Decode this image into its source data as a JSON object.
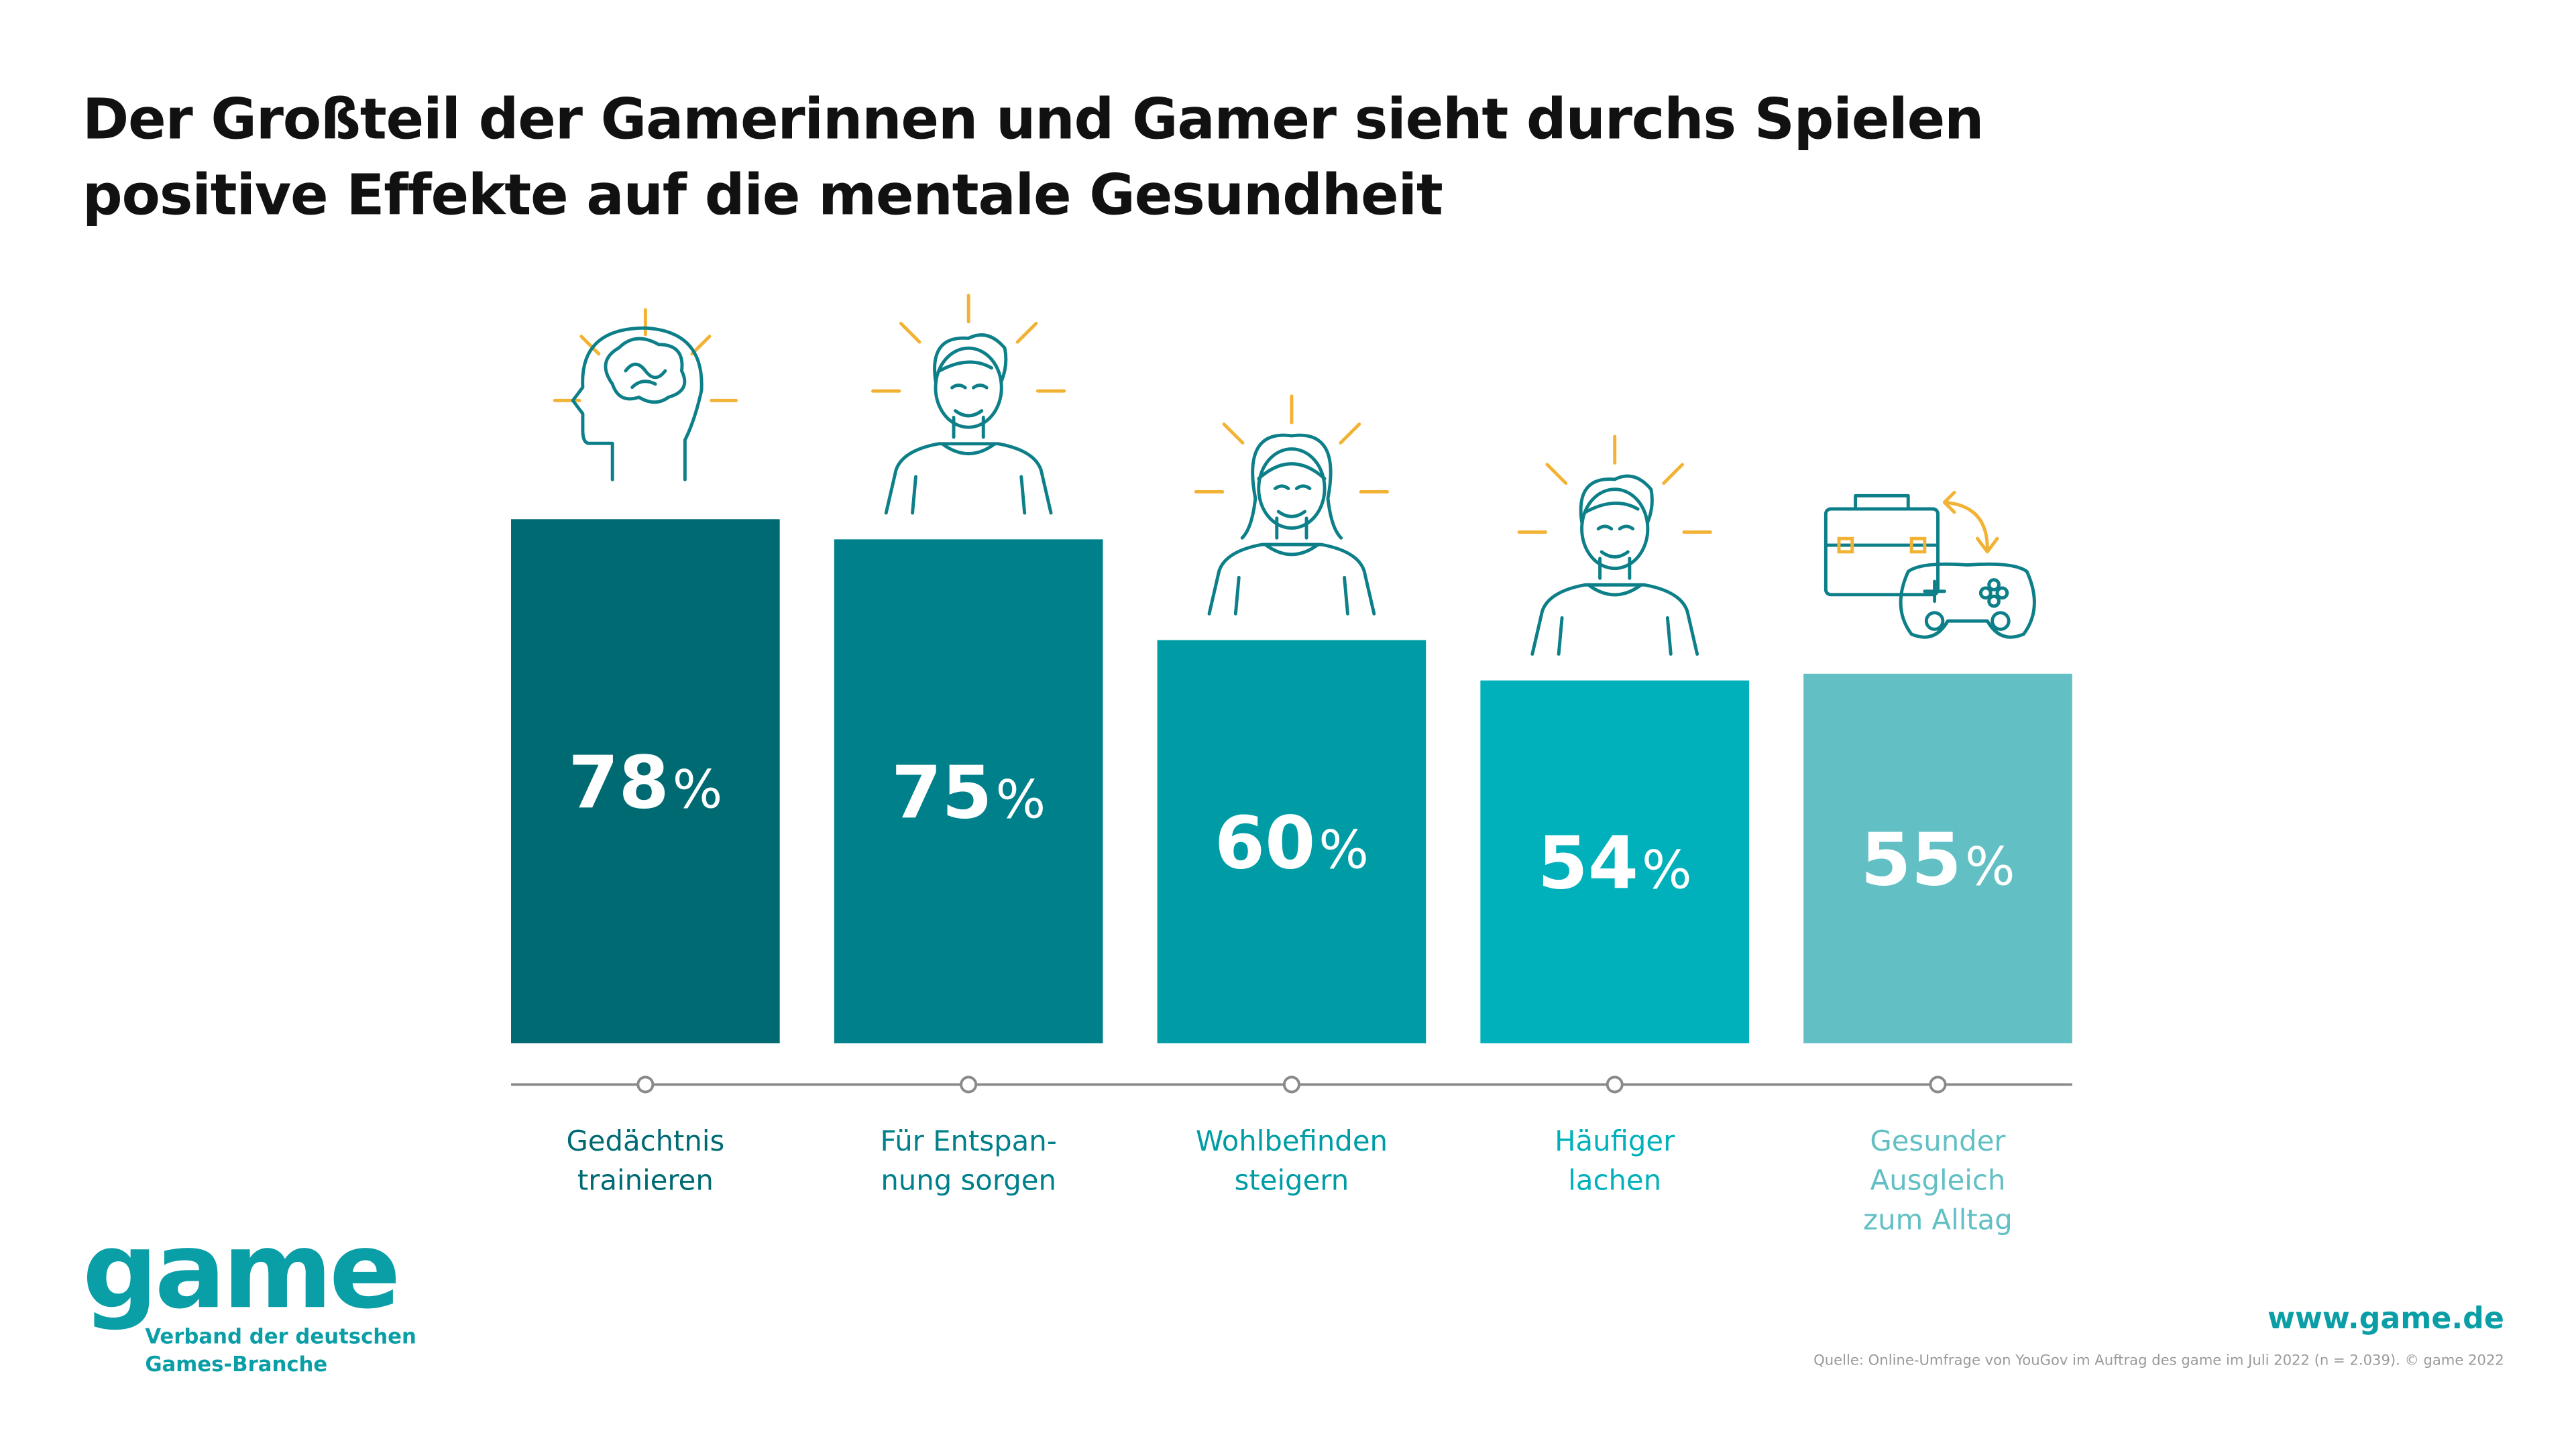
{
  "title_lines": [
    "Der Großteil der Gamerinnen und Gamer sieht durchs Spielen",
    "positive Effekte auf die mentale Gesundheit"
  ],
  "chart_data": {
    "type": "bar",
    "title": "Der Großteil der Gamerinnen und Gamer sieht durchs Spielen positive Effekte auf die mentale Gesundheit",
    "categories": [
      [
        "Gedächtnis",
        "trainieren"
      ],
      [
        "Für Entspan-",
        "nung sorgen"
      ],
      [
        "Wohlbefinden",
        "steigern"
      ],
      [
        "Häufiger",
        "lachen"
      ],
      [
        "Gesunder",
        "Ausgleich",
        "zum Alltag"
      ]
    ],
    "values": [
      78,
      75,
      60,
      54,
      55
    ],
    "value_labels": [
      "78",
      "75",
      "60",
      "54",
      "55"
    ],
    "unit": "%",
    "bar_colors": [
      "#006a73",
      "#00808a",
      "#009ca6",
      "#00b1bb",
      "#62c0c5"
    ],
    "label_colors": [
      "#006a73",
      "#00808a",
      "#009ca6",
      "#00b1bb",
      "#62c0c5"
    ],
    "icons": [
      "brain-head-icon",
      "relaxed-man-icon",
      "happy-woman-icon",
      "laughing-man-icon",
      "briefcase-gamepad-icon"
    ],
    "icon_line_color": "#0d7f88",
    "icon_ray_color": "#f2b233",
    "axis_color": "#8a8a8a",
    "ylim": [
      0,
      100
    ],
    "grid": false,
    "legend": "none"
  },
  "logo": {
    "word": "game",
    "subtitle_lines": [
      "Verband der deutschen",
      "Games-Branche"
    ],
    "color": "#0a9ea6"
  },
  "footer": {
    "website": "www.game.de",
    "source": "Quelle: Online-Umfrage von YouGov im Auftrag des game im Juli 2022 (n = 2.039). © game 2022"
  }
}
